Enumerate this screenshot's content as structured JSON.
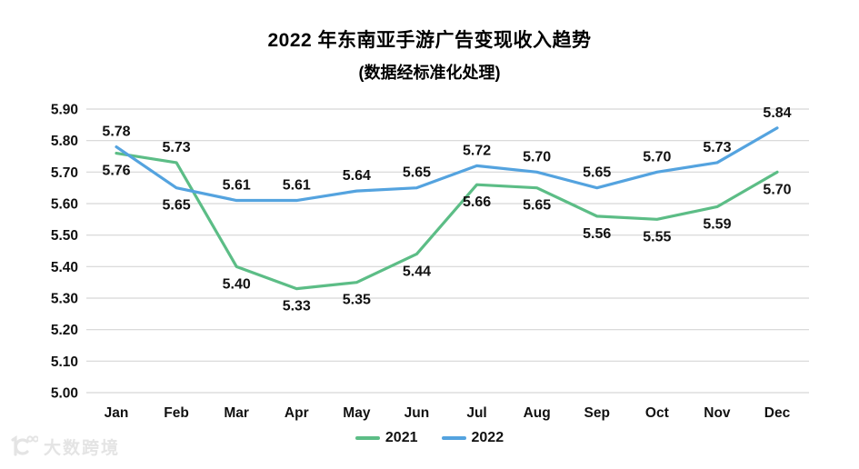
{
  "title": "2022 年东南亚手游广告变现收入趋势",
  "subtitle": "(数据经标准化处理)",
  "watermark": {
    "text": "大数跨境"
  },
  "legend": {
    "items": [
      {
        "label": "2021",
        "color": "#5cbd86"
      },
      {
        "label": "2022",
        "color": "#54a3df"
      }
    ]
  },
  "chart_data": {
    "type": "line",
    "categories": [
      "Jan",
      "Feb",
      "Mar",
      "Apr",
      "May",
      "Jun",
      "Jul",
      "Aug",
      "Sep",
      "Oct",
      "Nov",
      "Dec"
    ],
    "series": [
      {
        "name": "2021",
        "color": "#5cbd86",
        "values": [
          5.76,
          5.73,
          5.4,
          5.33,
          5.35,
          5.44,
          5.66,
          5.65,
          5.56,
          5.55,
          5.59,
          5.7
        ]
      },
      {
        "name": "2022",
        "color": "#54a3df",
        "values": [
          5.78,
          5.65,
          5.61,
          5.61,
          5.64,
          5.65,
          5.72,
          5.7,
          5.65,
          5.7,
          5.73,
          5.84
        ]
      }
    ],
    "title": "2022 年东南亚手游广告变现收入趋势",
    "subtitle": "(数据经标准化处理)",
    "xlabel": "",
    "ylabel": "",
    "ylim": [
      5.0,
      5.9
    ],
    "ytick_step": 0.1,
    "ytick_labels": [
      "5.00",
      "5.10",
      "5.20",
      "5.30",
      "5.40",
      "5.50",
      "5.60",
      "5.70",
      "5.80",
      "5.90"
    ],
    "grid": "horizontal",
    "gridline_color": "#d6d6d6",
    "data_labels": true,
    "legend_position": "bottom"
  }
}
